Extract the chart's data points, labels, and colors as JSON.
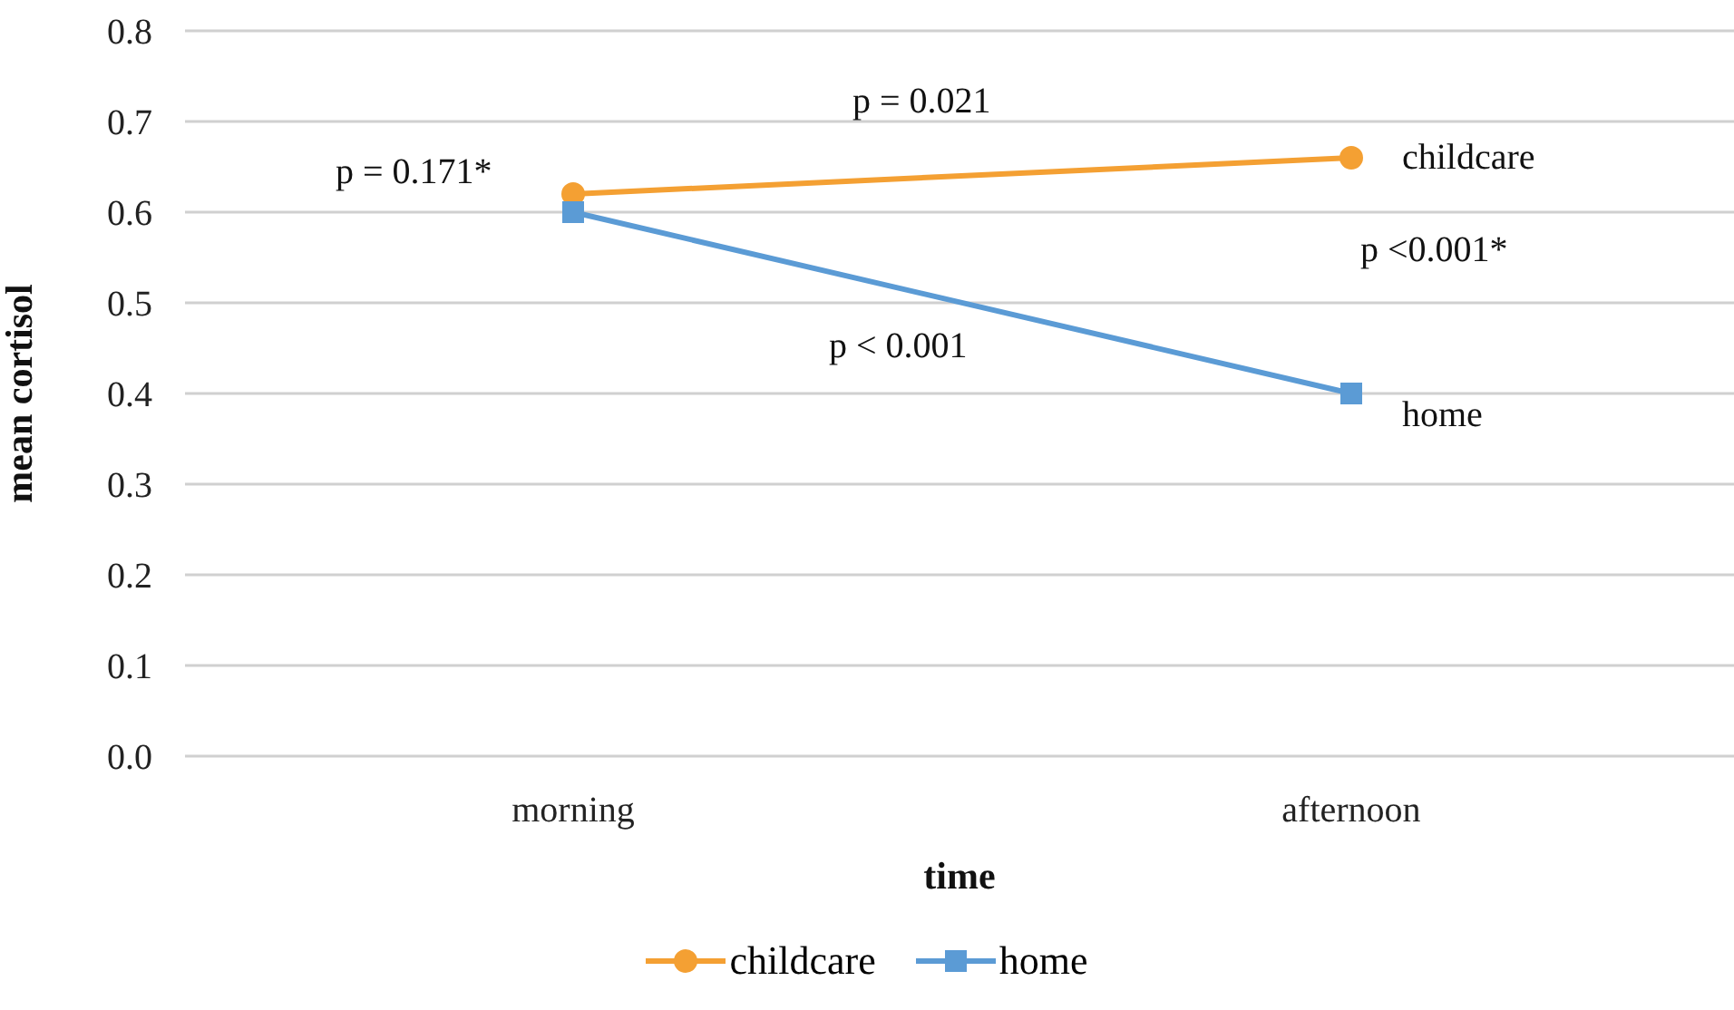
{
  "chart_data": {
    "type": "line",
    "xlabel": "time",
    "ylabel": "mean cortisol",
    "categories": [
      "morning",
      "afternoon"
    ],
    "series": [
      {
        "name": "childcare",
        "color": "#f4a033",
        "marker": "circle",
        "values": [
          0.62,
          0.66
        ]
      },
      {
        "name": "home",
        "color": "#5b9bd5",
        "marker": "square",
        "values": [
          0.6,
          0.4
        ]
      }
    ],
    "ylim": [
      0,
      0.8
    ],
    "yticks": [
      {
        "value": 0,
        "label": "0.0"
      },
      0.1,
      0.2,
      0.3,
      0.4,
      0.5,
      0.6,
      0.7,
      0.8
    ],
    "grid": "y",
    "legend": "bottom",
    "annotations": [
      "p = 0.171*",
      "p = 0.021",
      "p <0.001*",
      "p < 0.001"
    ]
  }
}
